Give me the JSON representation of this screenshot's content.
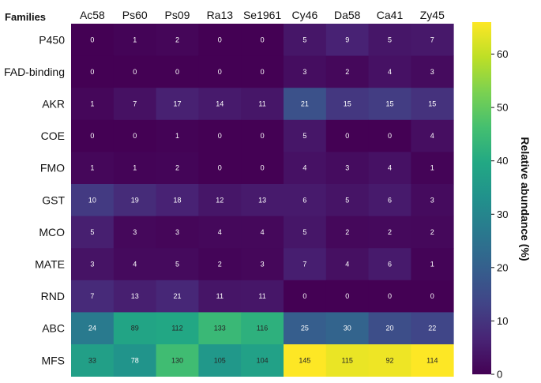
{
  "chart_data": {
    "type": "heatmap",
    "title": "",
    "row_header": "Families",
    "columns": [
      "Ac58",
      "Ps60",
      "Ps09",
      "Ra13",
      "Se1961",
      "Cy46",
      "Da58",
      "Ca41",
      "Zy45"
    ],
    "rows": [
      "P450",
      "FAD-binding",
      "AKR",
      "COE",
      "FMO",
      "GST",
      "MCO",
      "MATE",
      "RND",
      "ABC",
      "MFS"
    ],
    "cell_labels": [
      [
        0,
        1,
        2,
        0,
        0,
        5,
        9,
        5,
        7
      ],
      [
        0,
        0,
        0,
        0,
        0,
        3,
        2,
        4,
        3
      ],
      [
        1,
        7,
        17,
        14,
        11,
        21,
        15,
        15,
        15
      ],
      [
        0,
        0,
        1,
        0,
        0,
        5,
        0,
        0,
        4
      ],
      [
        1,
        1,
        2,
        0,
        0,
        4,
        3,
        4,
        1
      ],
      [
        10,
        19,
        18,
        12,
        13,
        6,
        5,
        6,
        3
      ],
      [
        5,
        3,
        3,
        4,
        4,
        5,
        2,
        2,
        2
      ],
      [
        3,
        4,
        5,
        2,
        3,
        7,
        4,
        6,
        1
      ],
      [
        7,
        13,
        21,
        11,
        11,
        0,
        0,
        0,
        0
      ],
      [
        24,
        89,
        112,
        133,
        116,
        25,
        30,
        20,
        22
      ],
      [
        33,
        78,
        130,
        105,
        104,
        145,
        115,
        92,
        114
      ]
    ],
    "relative_abundance": [
      [
        0,
        0.5,
        0.9,
        0,
        0,
        3.9,
        6.3,
        3.9,
        4.4
      ],
      [
        0,
        0,
        0,
        0,
        0,
        2.3,
        1.4,
        3.1,
        1.9
      ],
      [
        1.1,
        3,
        6,
        4.7,
        4,
        16.4,
        10.5,
        11.7,
        9.4
      ],
      [
        0,
        0,
        0.3,
        0,
        0,
        3.9,
        0,
        0,
        2.5
      ],
      [
        1.1,
        0.5,
        0.7,
        0,
        0,
        3.1,
        2.1,
        3.1,
        0.6
      ],
      [
        11.2,
        8.2,
        6.3,
        4,
        4.7,
        4.7,
        3.5,
        4.7,
        1.9
      ],
      [
        5.6,
        1.3,
        1,
        1.3,
        1.4,
        3.9,
        1.4,
        1.6,
        1.3
      ],
      [
        3.4,
        1.7,
        1.7,
        0.7,
        1.1,
        5.5,
        2.8,
        4.7,
        0.6
      ],
      [
        7.9,
        5.6,
        7.3,
        3.7,
        4,
        0,
        0,
        0,
        0
      ],
      [
        27,
        38.5,
        39.2,
        44.3,
        41.9,
        19.5,
        21,
        15.6,
        13.8
      ],
      [
        37.1,
        33.8,
        45.4,
        35,
        37.5,
        66,
        64,
        64.5,
        66
      ]
    ],
    "colorbar": {
      "label": "Relative abundance (%)",
      "range": [
        0,
        66
      ],
      "ticks": [
        0,
        10,
        20,
        30,
        40,
        50,
        60
      ],
      "colormap": "viridis"
    }
  }
}
